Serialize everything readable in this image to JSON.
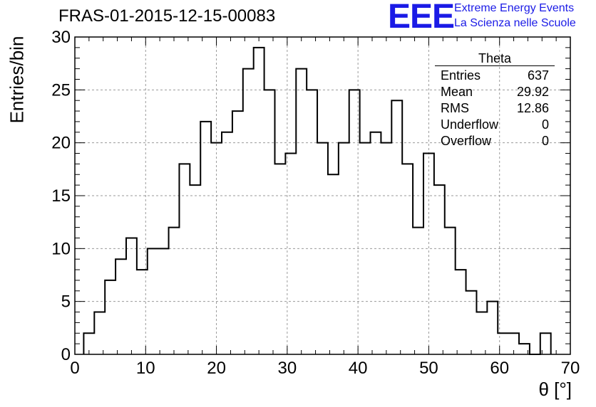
{
  "title": "FRAS-01-2015-12-15-00083",
  "logo": {
    "text": "EEE",
    "line1": "Extreme Energy Events",
    "line2": "La Scienza nelle Scuole",
    "color": "#1b1be6"
  },
  "stats": {
    "name": "Theta",
    "rows": [
      {
        "label": "Entries",
        "value": "637"
      },
      {
        "label": "Mean",
        "value": "29.92"
      },
      {
        "label": "RMS",
        "value": "12.86"
      },
      {
        "label": "Underflow",
        "value": "0"
      },
      {
        "label": "Overflow",
        "value": "0"
      }
    ]
  },
  "chart_data": {
    "type": "bar",
    "title": "FRAS-01-2015-12-15-00083",
    "xlabel": "θ [°]",
    "ylabel": "Entries/bin",
    "xlim": [
      0,
      70
    ],
    "ylim": [
      0,
      30
    ],
    "xticks": [
      0,
      10,
      20,
      30,
      40,
      50,
      60,
      70
    ],
    "yticks": [
      0,
      5,
      10,
      15,
      20,
      25,
      30
    ],
    "grid": true,
    "bin_width": 1.5,
    "bin_start": 1.25,
    "values": [
      2,
      4,
      7,
      9,
      11,
      8,
      10,
      10,
      12,
      18,
      16,
      22,
      20,
      21,
      23,
      27,
      29,
      25,
      18,
      19,
      27,
      25,
      20,
      17,
      20,
      25,
      20,
      21,
      20,
      24,
      18,
      12,
      19,
      16,
      12,
      8,
      6,
      4,
      5,
      2,
      2,
      1,
      0,
      2
    ]
  }
}
